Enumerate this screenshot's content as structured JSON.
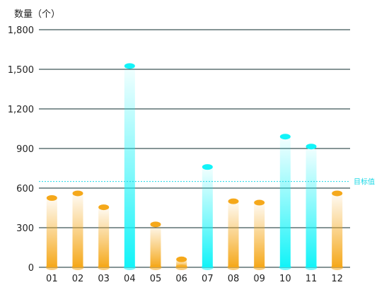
{
  "chart_data": {
    "type": "bar",
    "ylabel": "数量（个）",
    "categories": [
      "01",
      "02",
      "03",
      "04",
      "05",
      "06",
      "07",
      "08",
      "09",
      "10",
      "11",
      "12"
    ],
    "values": [
      525,
      560,
      455,
      1525,
      325,
      60,
      760,
      500,
      490,
      990,
      915,
      560
    ],
    "above_target": [
      false,
      false,
      false,
      true,
      false,
      false,
      true,
      false,
      false,
      true,
      true,
      false
    ],
    "ylim": [
      0,
      1800
    ],
    "yticks": [
      "0",
      "300",
      "600",
      "900",
      "1,200",
      "1,500",
      "1,800"
    ],
    "ytick_values": [
      0,
      300,
      600,
      900,
      1200,
      1500,
      1800
    ],
    "target": {
      "label": "目标值",
      "value": 650
    },
    "grid": true,
    "colors": {
      "below_target": "#f5a81a",
      "above_target": "#12f3f8",
      "target_line": "#1ad8e6",
      "grid": "#0d2b2e"
    }
  }
}
